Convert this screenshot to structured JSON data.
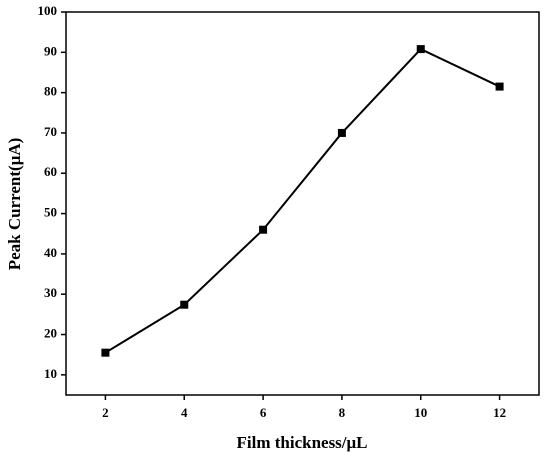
{
  "chart_data": {
    "type": "line",
    "x_label": "Film thickness/μL",
    "y_label": "Peak Current(μA)",
    "x": [
      2,
      4,
      6,
      8,
      10,
      12
    ],
    "series": [
      {
        "color": "#000000",
        "values": [
          15.5,
          27.4,
          46,
          70,
          90.8,
          81.5
        ]
      }
    ],
    "xlim": [
      1,
      13
    ],
    "xticks": [
      2,
      4,
      6,
      8,
      10,
      12
    ],
    "ylim": [
      5,
      100
    ],
    "yticks": [
      10,
      20,
      30,
      40,
      50,
      60,
      70,
      80,
      90,
      100
    ],
    "marker": "square"
  }
}
